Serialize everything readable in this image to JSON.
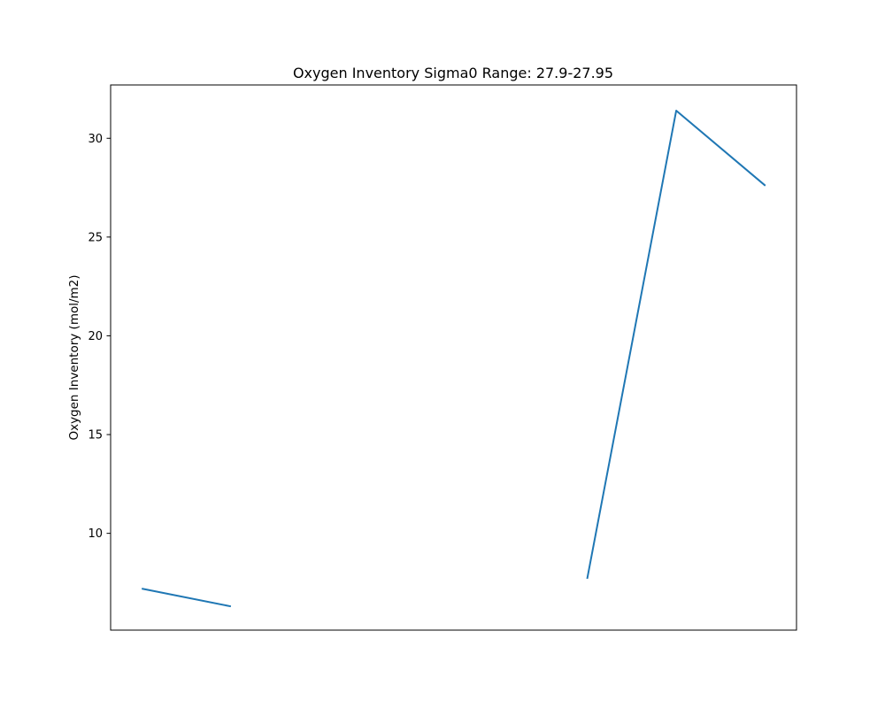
{
  "chart_data": {
    "type": "line",
    "title": "Oxygen Inventory Sigma0 Range: 27.9-27.95",
    "xlabel": "",
    "ylabel": "Oxygen Inventory (mol/m2)",
    "x": [
      0,
      1,
      2,
      3,
      4,
      5,
      6,
      7
    ],
    "xlim": [
      -0.35,
      7.35
    ],
    "ylim": [
      5.1,
      32.7
    ],
    "yticks": [
      10,
      15,
      20,
      25,
      30
    ],
    "x_tick_labels_visible": false,
    "grid": false,
    "legend": "none",
    "series": [
      {
        "color": "#1f77b4",
        "values": [
          7.2,
          6.3,
          null,
          null,
          null,
          7.7,
          31.4,
          27.6
        ]
      }
    ]
  }
}
